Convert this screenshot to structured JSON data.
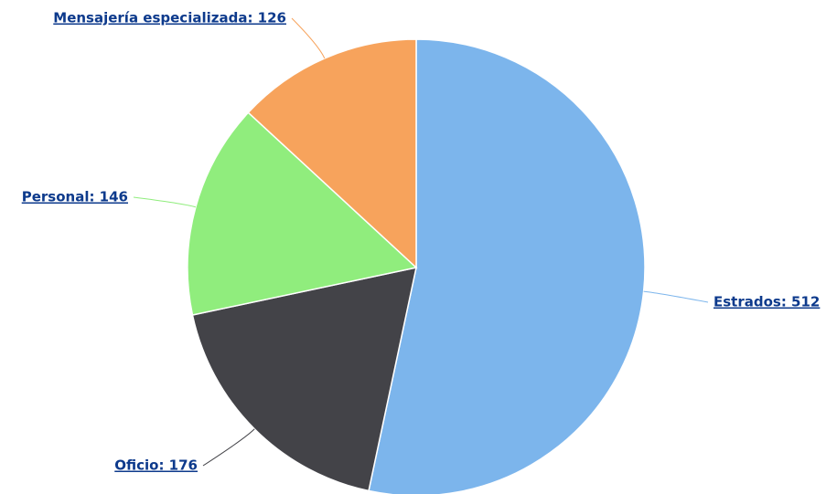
{
  "chart_data": {
    "type": "pie",
    "values": [
      512,
      176,
      146,
      126
    ],
    "value_labels": [
      "Estrados: 512",
      "Oficio: 176",
      "Personal: 146",
      "Mensajería especializada: 126"
    ],
    "colors": [
      "#7cb5ec",
      "#434348",
      "#90ed7d",
      "#f7a35c"
    ]
  }
}
